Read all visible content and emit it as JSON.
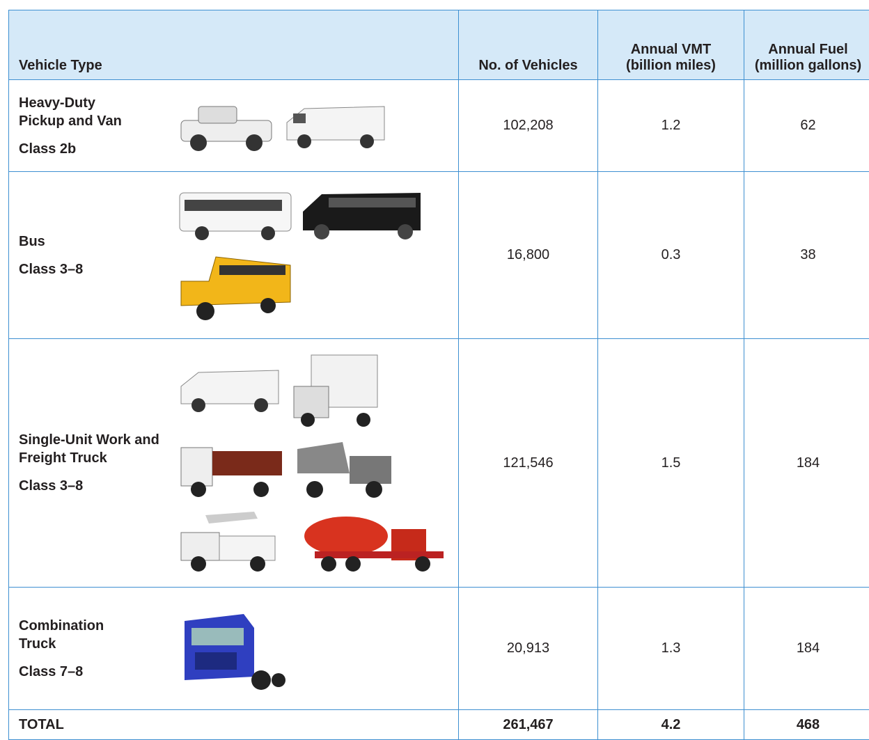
{
  "table": {
    "header": [
      "Vehicle Type",
      "No. of Vehicles",
      "Annual VMT (billion miles)",
      "Annual Fuel (million gallons)"
    ],
    "rows": [
      {
        "vehicle_type": "Heavy-Duty Pickup and Van",
        "class": "Class 2b",
        "vehicles": "102,208",
        "vmt": "1.2",
        "fuel": "62"
      },
      {
        "vehicle_type": "Bus",
        "class": "Class 3–8",
        "vehicles": "16,800",
        "vmt": "0.3",
        "fuel": "38"
      },
      {
        "vehicle_type": "Single-Unit Work and Freight Truck",
        "class": "Class 3–8",
        "vehicles": "121,546",
        "vmt": "1.5",
        "fuel": "184"
      },
      {
        "vehicle_type": "Combination Truck",
        "class": "Class 7–8",
        "vehicles": "20,913",
        "vmt": "1.3",
        "fuel": "184"
      }
    ],
    "total": {
      "label": "TOTAL",
      "vehicles": "261,467",
      "vmt": "4.2",
      "fuel": "468"
    }
  }
}
